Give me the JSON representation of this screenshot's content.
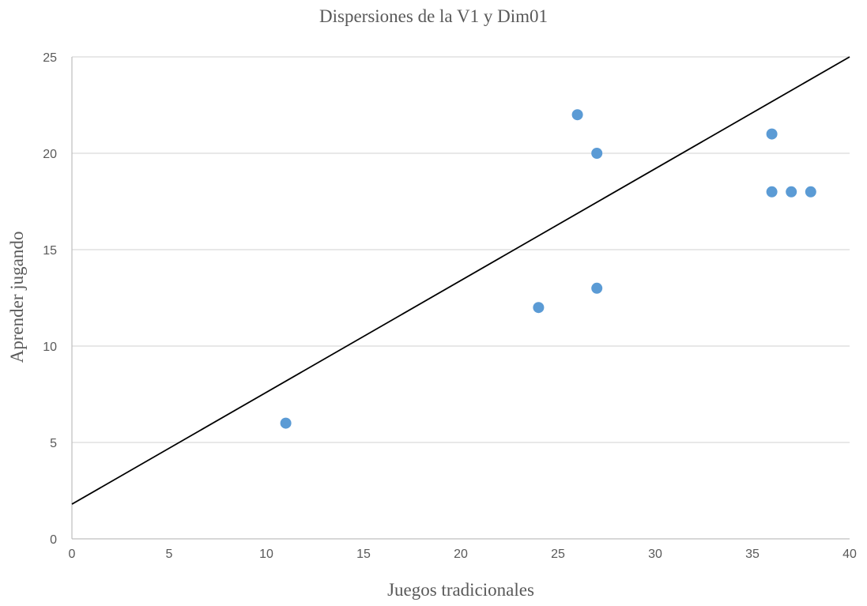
{
  "chart_data": {
    "type": "scatter",
    "title": "Dispersiones de la V1 y Dim01",
    "xlabel": "Juegos tradicionales",
    "ylabel": "Aprender jugando",
    "xlim": [
      0,
      40
    ],
    "ylim": [
      0,
      25
    ],
    "x_ticks": [
      0,
      5,
      10,
      15,
      20,
      25,
      30,
      35,
      40
    ],
    "y_ticks": [
      0,
      5,
      10,
      15,
      20,
      25
    ],
    "grid": "horizontal",
    "legend": "none",
    "points": [
      {
        "x": 11,
        "y": 6
      },
      {
        "x": 24,
        "y": 12
      },
      {
        "x": 26,
        "y": 22
      },
      {
        "x": 27,
        "y": 20
      },
      {
        "x": 27,
        "y": 13
      },
      {
        "x": 36,
        "y": 21
      },
      {
        "x": 36,
        "y": 18
      },
      {
        "x": 37,
        "y": 18
      },
      {
        "x": 38,
        "y": 18
      }
    ],
    "trendline": {
      "type": "linear",
      "x": [
        0,
        40
      ],
      "y": [
        1.8,
        25
      ]
    },
    "colors": {
      "marker": "#5b9bd5",
      "trendline": "#000000",
      "grid": "#d9d9d9",
      "axis": "#bfbfbf"
    }
  }
}
